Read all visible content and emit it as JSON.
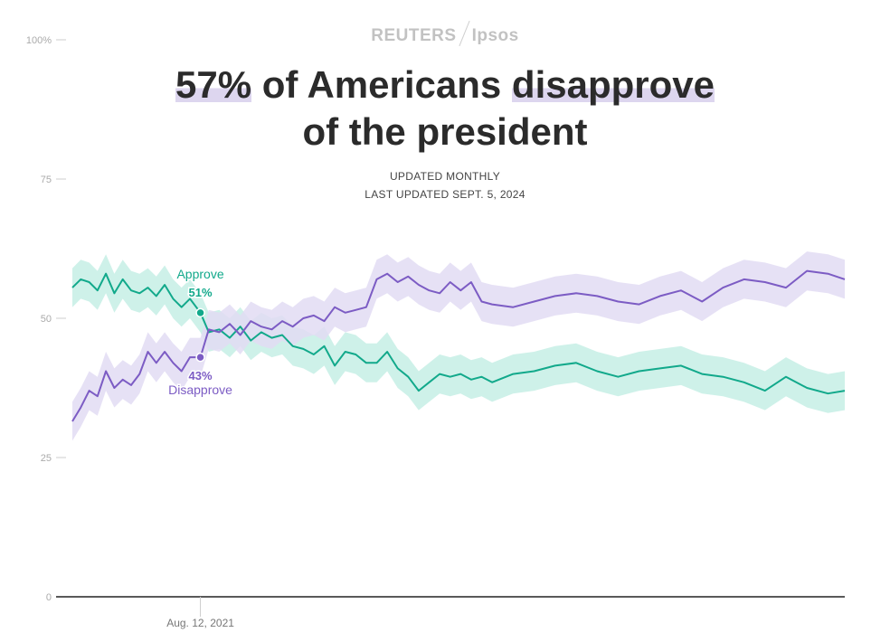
{
  "brand": {
    "left": "REUTERS",
    "right": "Ipsos"
  },
  "title": {
    "part1": "57%",
    "part2": " of Americans ",
    "part3": "disapprove",
    "line2": "of the president"
  },
  "subtitle": {
    "line1": "UPDATED MONTHLY",
    "line2": "LAST UPDATED SEPT. 5, 2024"
  },
  "colors": {
    "approve": "#12a98b",
    "approve_band": "#c6efe5",
    "disapprove": "#7c5cc4",
    "disapprove_band": "#e2dcf3",
    "axis": "#222222",
    "tick_text": "#aaaaaa"
  },
  "annotation": {
    "approve_label": "Approve",
    "approve_value": "51%",
    "disapprove_label": "Disapprove",
    "disapprove_value": "43%",
    "date_label": "Aug. 12, 2021"
  },
  "chart_data": {
    "type": "line",
    "ylim": [
      0,
      100
    ],
    "yticks": [
      0,
      25,
      50,
      75,
      100
    ],
    "ytick_labels": [
      "0",
      "25",
      "50",
      "75",
      "100%"
    ],
    "x_label_ticks": [
      "Aug. 12, 2021"
    ],
    "series": [
      {
        "name": "Approve",
        "color": "#12a98b",
        "x": [
          2021.0,
          2021.04,
          2021.08,
          2021.12,
          2021.16,
          2021.2,
          2021.24,
          2021.28,
          2021.32,
          2021.36,
          2021.4,
          2021.44,
          2021.48,
          2021.52,
          2021.56,
          2021.61,
          2021.65,
          2021.7,
          2021.75,
          2021.8,
          2021.85,
          2021.9,
          2021.95,
          2022.0,
          2022.05,
          2022.1,
          2022.15,
          2022.2,
          2022.25,
          2022.3,
          2022.35,
          2022.4,
          2022.45,
          2022.5,
          2022.55,
          2022.6,
          2022.65,
          2022.7,
          2022.75,
          2022.8,
          2022.85,
          2022.9,
          2022.95,
          2023.0,
          2023.1,
          2023.2,
          2023.3,
          2023.4,
          2023.5,
          2023.6,
          2023.7,
          2023.8,
          2023.9,
          2024.0,
          2024.1,
          2024.2,
          2024.3,
          2024.4,
          2024.5,
          2024.6,
          2024.68
        ],
        "values": [
          55.5,
          57,
          56.5,
          55,
          58,
          54.5,
          57,
          55,
          54.5,
          55.5,
          54,
          56,
          53.5,
          52,
          53.5,
          51,
          47.5,
          48,
          46.5,
          48.5,
          46,
          47.5,
          46.5,
          47,
          45,
          44.5,
          43.5,
          45,
          41.5,
          44,
          43.5,
          42,
          42,
          44,
          41,
          39.5,
          37,
          38.5,
          40,
          39.5,
          40,
          39,
          39.5,
          38.5,
          40,
          40.5,
          41.5,
          42,
          40.5,
          39.5,
          40.5,
          41,
          41.5,
          40,
          39.5,
          38.5,
          37,
          39.5,
          37.5,
          36.5,
          37
        ],
        "lower": [
          52,
          53.5,
          53,
          51.5,
          54.5,
          51,
          53.5,
          51.5,
          51,
          52,
          50.5,
          52.5,
          50,
          48.5,
          50,
          47.5,
          44,
          44.5,
          43,
          45,
          42.5,
          44,
          43,
          43.5,
          41.5,
          41,
          40,
          41.5,
          38,
          40.5,
          40,
          38.5,
          38.5,
          40.5,
          37.5,
          36,
          33.5,
          35,
          36.5,
          36,
          36.5,
          35.5,
          36,
          35,
          36.5,
          37,
          38,
          38.5,
          37,
          36,
          37,
          37.5,
          38,
          36.5,
          36,
          35,
          33.5,
          36,
          34,
          33,
          33.5
        ],
        "upper": [
          59,
          60.5,
          60,
          58.5,
          61.5,
          58,
          60.5,
          58.5,
          58,
          59,
          57.5,
          59.5,
          57,
          55.5,
          57,
          54.5,
          51,
          51.5,
          50,
          52,
          49.5,
          51,
          50,
          50.5,
          48.5,
          48,
          47,
          48.5,
          45,
          47.5,
          47,
          45.5,
          45.5,
          47.5,
          44.5,
          43,
          40.5,
          42,
          43.5,
          43,
          43.5,
          42.5,
          43,
          42,
          43.5,
          44,
          45,
          45.5,
          44,
          43,
          44,
          44.5,
          45,
          43.5,
          43,
          42,
          40.5,
          43,
          41,
          40,
          40.5
        ]
      },
      {
        "name": "Disapprove",
        "color": "#7c5cc4",
        "x": [
          2021.0,
          2021.04,
          2021.08,
          2021.12,
          2021.16,
          2021.2,
          2021.24,
          2021.28,
          2021.32,
          2021.36,
          2021.4,
          2021.44,
          2021.48,
          2021.52,
          2021.56,
          2021.61,
          2021.65,
          2021.7,
          2021.75,
          2021.8,
          2021.85,
          2021.9,
          2021.95,
          2022.0,
          2022.05,
          2022.1,
          2022.15,
          2022.2,
          2022.25,
          2022.3,
          2022.35,
          2022.4,
          2022.45,
          2022.5,
          2022.55,
          2022.6,
          2022.65,
          2022.7,
          2022.75,
          2022.8,
          2022.85,
          2022.9,
          2022.95,
          2023.0,
          2023.1,
          2023.2,
          2023.3,
          2023.4,
          2023.5,
          2023.6,
          2023.7,
          2023.8,
          2023.9,
          2024.0,
          2024.1,
          2024.2,
          2024.3,
          2024.4,
          2024.5,
          2024.6,
          2024.68
        ],
        "values": [
          31.5,
          34,
          37,
          36,
          40.5,
          37.5,
          39,
          38,
          40,
          44,
          42,
          44,
          42,
          40.5,
          43,
          43,
          48,
          47.5,
          49,
          47,
          49.5,
          48.5,
          48,
          49.5,
          48.5,
          50,
          50.5,
          49.5,
          52,
          51,
          51.5,
          52,
          57,
          58,
          56.5,
          57.5,
          56,
          55,
          54.5,
          56.5,
          55,
          56.5,
          53,
          52.5,
          52,
          53,
          54,
          54.5,
          54,
          53,
          52.5,
          54,
          55,
          53,
          55.5,
          57,
          56.5,
          55.5,
          58.5,
          58,
          57
        ],
        "lower": [
          28,
          30.5,
          33.5,
          32.5,
          37,
          34,
          35.5,
          34.5,
          36.5,
          40.5,
          38.5,
          40.5,
          38.5,
          37,
          39.5,
          39.5,
          44.5,
          44,
          45.5,
          43.5,
          46,
          45,
          44.5,
          46,
          45,
          46.5,
          47,
          46,
          48.5,
          47.5,
          48,
          48.5,
          53.5,
          54.5,
          53,
          54,
          52.5,
          51.5,
          51,
          53,
          51.5,
          53,
          49.5,
          49,
          48.5,
          49.5,
          50.5,
          51,
          50.5,
          49.5,
          49,
          50.5,
          51.5,
          49.5,
          52,
          53.5,
          53,
          52,
          55,
          54.5,
          53.5
        ],
        "upper": [
          35,
          37.5,
          40.5,
          39.5,
          44,
          41,
          42.5,
          41.5,
          43.5,
          47.5,
          45.5,
          47.5,
          45.5,
          44,
          46.5,
          46.5,
          51.5,
          51,
          52.5,
          50.5,
          53,
          52,
          51.5,
          53,
          52,
          53.5,
          54,
          53,
          55.5,
          54.5,
          55,
          55.5,
          60.5,
          61.5,
          60,
          61,
          59.5,
          58.5,
          58,
          60,
          58.5,
          60,
          56.5,
          56,
          55.5,
          56.5,
          57.5,
          58,
          57.5,
          56.5,
          56,
          57.5,
          58.5,
          56.5,
          59,
          60.5,
          60,
          59,
          62,
          61.5,
          60.5
        ]
      }
    ],
    "xlim": [
      2021.0,
      2024.68
    ],
    "highlight": {
      "x": 2021.61,
      "approve": 51,
      "disapprove": 43
    }
  }
}
